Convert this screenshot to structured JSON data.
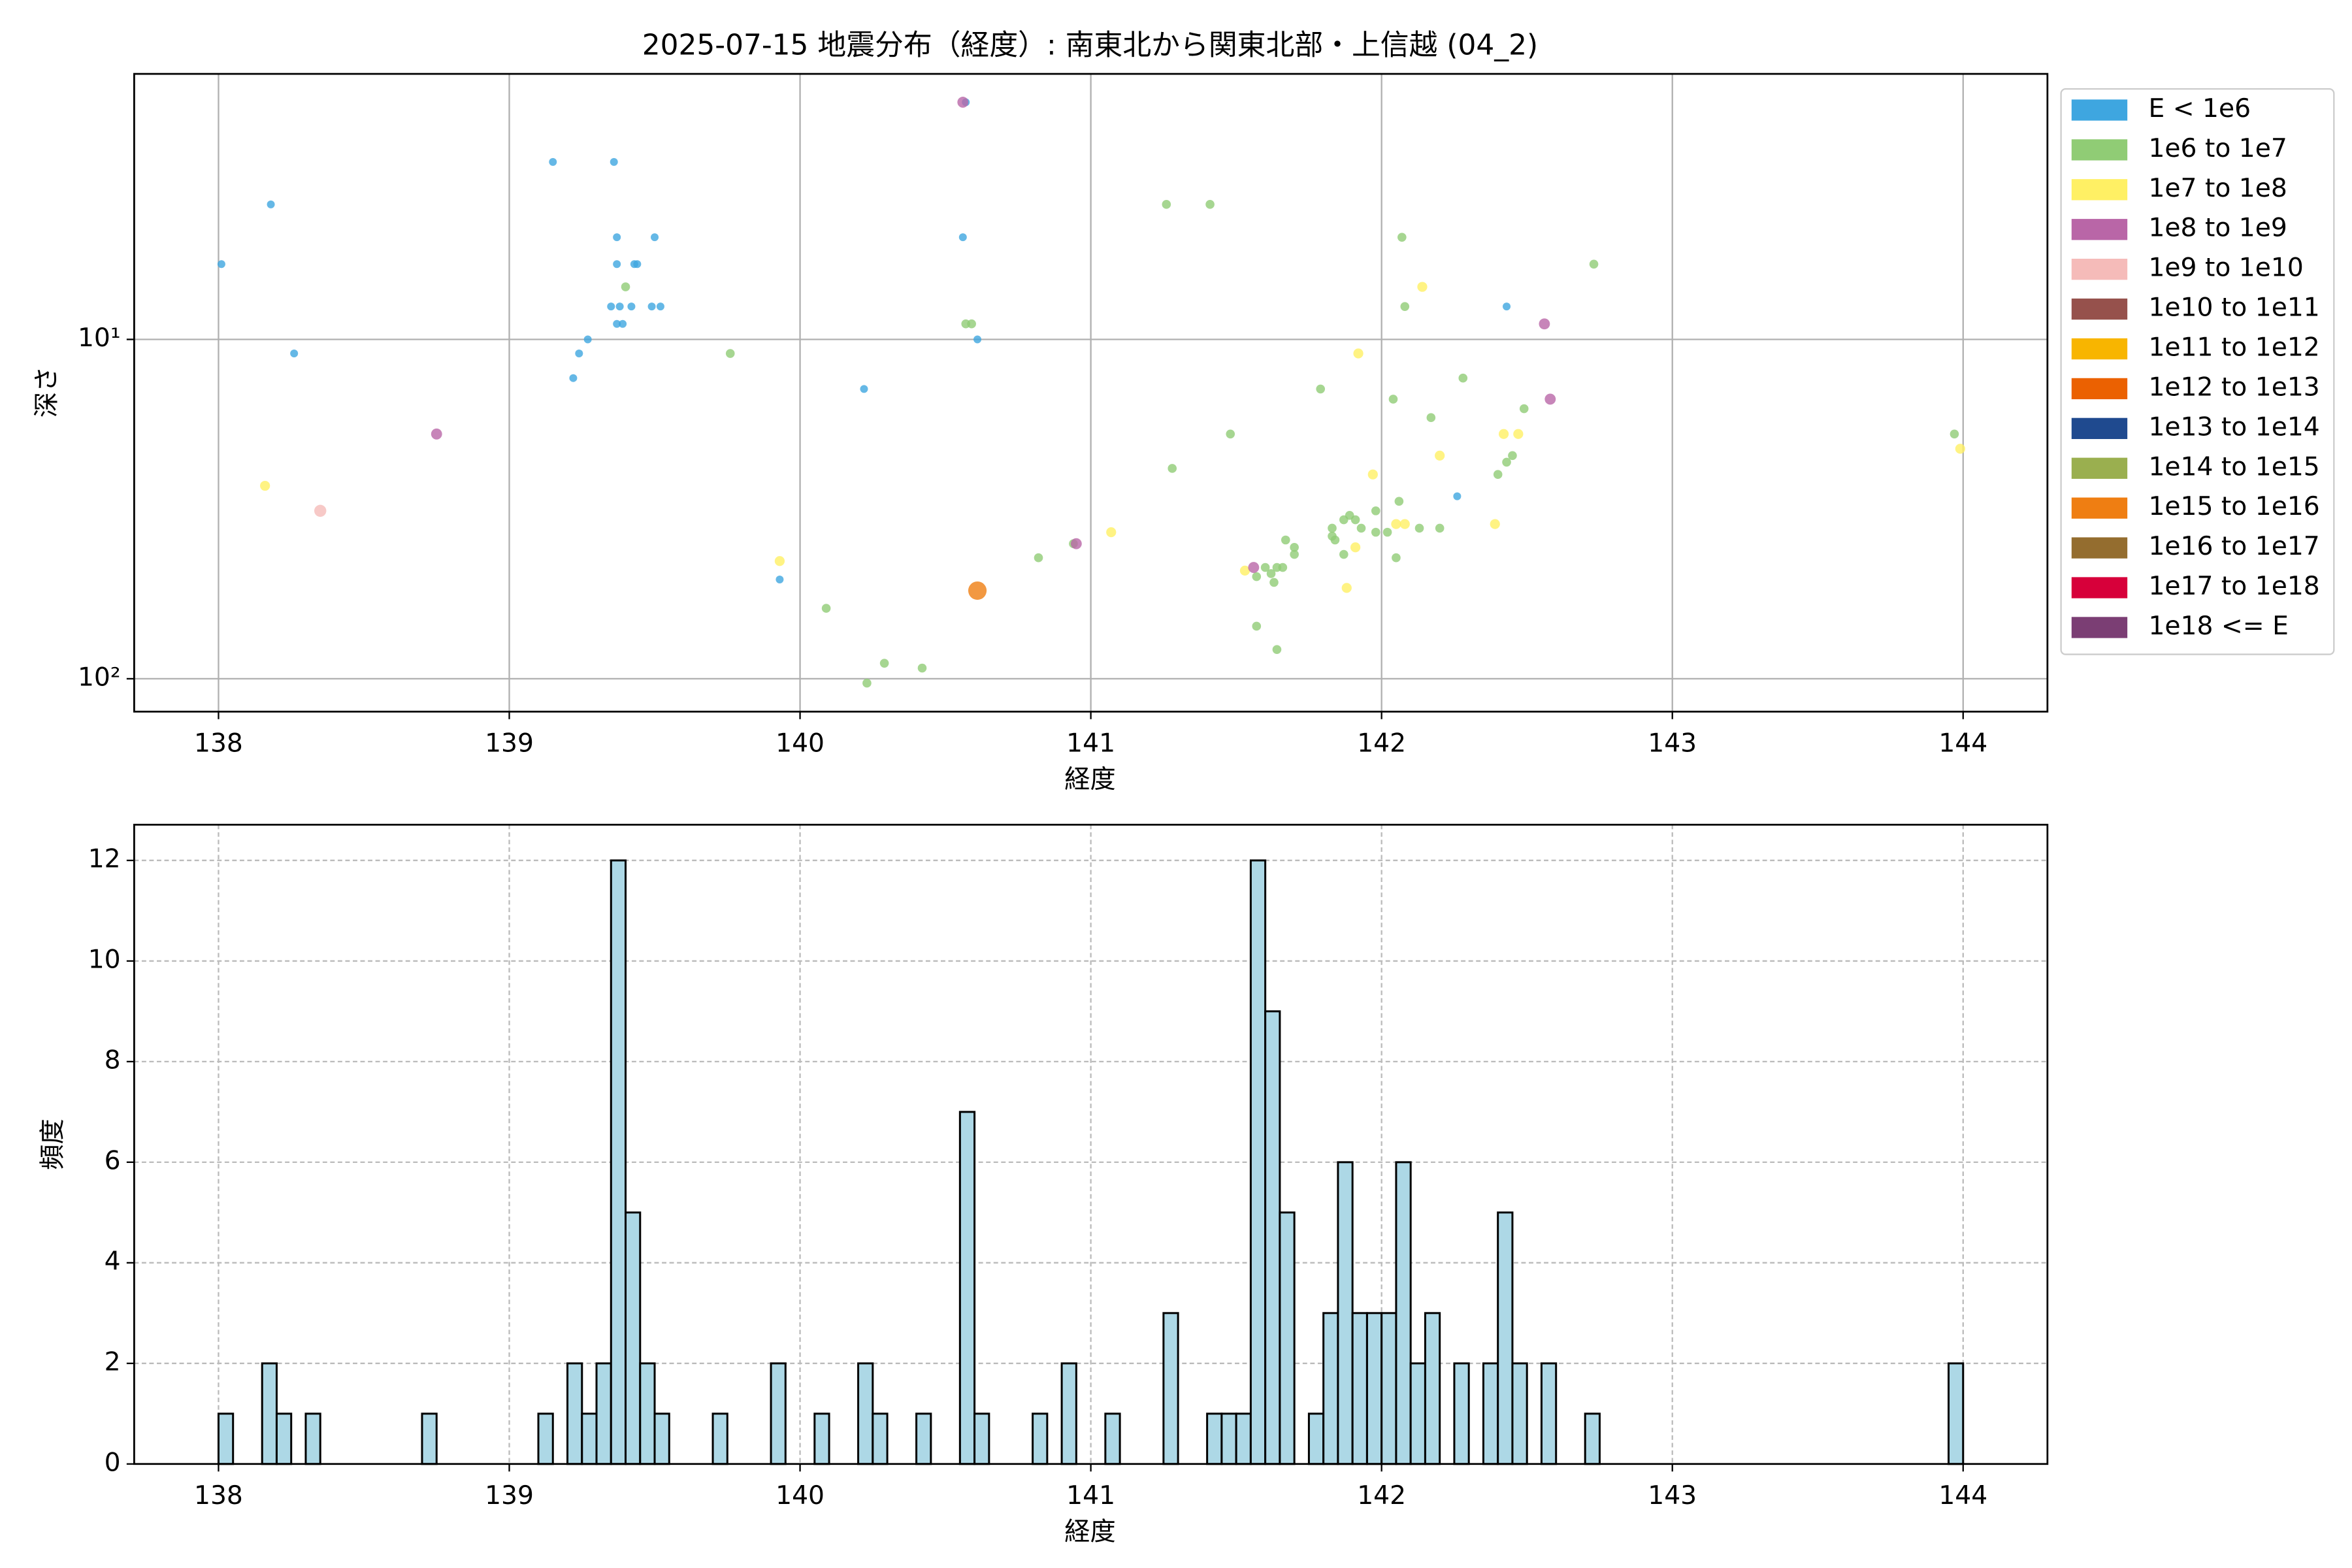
{
  "chart_data": [
    {
      "type": "scatter",
      "title": "2025-07-15 地震分布（経度）: 南東北から関東北部・上信越 (04_2)",
      "x_label": "経度",
      "y_label": "深さ",
      "xlim": [
        137.71,
        144.29
      ],
      "xticks": [
        138,
        139,
        140,
        141,
        142,
        143,
        144
      ],
      "ylim": [
        125,
        1.65
      ],
      "y_scale": "log",
      "yticks": [
        {
          "value": 10,
          "label": "10¹"
        },
        {
          "value": 100,
          "label": "10²"
        }
      ],
      "grid": true,
      "grid_style": "solid",
      "legend": "outside right",
      "series": [
        {
          "name": "E < 1e6",
          "color": "#3ea6e0",
          "x": [
            138.01,
            138.18,
            138.26,
            139.15,
            139.22,
            139.24,
            139.27,
            139.36,
            139.37,
            139.37,
            139.35,
            139.38,
            139.37,
            139.39,
            139.42,
            139.43,
            139.44,
            139.49,
            139.5,
            139.52,
            139.93,
            140.22,
            140.56,
            140.57,
            140.61,
            142.26,
            142.43
          ],
          "values": [
            6,
            4,
            11,
            3,
            13,
            11,
            10,
            3,
            5,
            6,
            8,
            8,
            9,
            9,
            8,
            6,
            6,
            8,
            5,
            8,
            51,
            14,
            5,
            2,
            10,
            29,
            8
          ]
        },
        {
          "name": "1e6 to 1e7",
          "color": "#90cc75",
          "x": [
            139.4,
            139.76,
            140.09,
            140.23,
            140.29,
            140.42,
            140.57,
            140.59,
            140.82,
            140.94,
            141.26,
            141.41,
            141.28,
            141.48,
            141.57,
            141.6,
            141.62,
            141.64,
            141.63,
            141.66,
            141.57,
            141.64,
            141.67,
            141.7,
            141.7,
            141.79,
            141.83,
            141.83,
            141.84,
            141.87,
            141.87,
            141.89,
            141.91,
            141.93,
            141.98,
            141.98,
            142.02,
            142.04,
            142.06,
            142.05,
            142.07,
            142.08,
            142.13,
            142.17,
            142.2,
            142.28,
            142.4,
            142.43,
            142.45,
            142.49,
            142.73,
            143.97
          ],
          "values": [
            7,
            11,
            62,
            103,
            90,
            93,
            9,
            9,
            44,
            40,
            4,
            4,
            24,
            19,
            50,
            47,
            49,
            47,
            52,
            47,
            70,
            82,
            39,
            41,
            43,
            14,
            38,
            36,
            39,
            43,
            34,
            33,
            34,
            36,
            32,
            37,
            37,
            15,
            30,
            44,
            5,
            8,
            36,
            17,
            36,
            13,
            25,
            23,
            22,
            16,
            6,
            19
          ]
        },
        {
          "name": "1e7 to 1e8",
          "color": "#fff064",
          "x": [
            138.16,
            139.93,
            141.07,
            141.53,
            141.88,
            141.91,
            141.92,
            141.97,
            142.05,
            142.08,
            142.14,
            142.2,
            142.39,
            142.42,
            142.47,
            143.99
          ],
          "values": [
            27,
            45,
            37,
            48,
            54,
            41,
            11,
            25,
            35,
            35,
            7,
            22,
            35,
            19,
            19,
            21
          ]
        },
        {
          "name": "1e8 to 1e9",
          "color": "#b966a7",
          "x": [
            138.75,
            140.56,
            140.95,
            141.56,
            142.56,
            142.58
          ],
          "values": [
            19,
            2,
            40,
            47,
            9,
            15
          ]
        },
        {
          "name": "1e9 to 1e10",
          "color": "#f5bbb9",
          "x": [
            138.35
          ],
          "values": [
            32
          ]
        },
        {
          "name": "1e10 to 1e11",
          "color": "#96514c",
          "x": [],
          "values": []
        },
        {
          "name": "1e11 to 1e12",
          "color": "#f8b500",
          "x": [],
          "values": []
        },
        {
          "name": "1e12 to 1e13",
          "color": "#eb6101",
          "x": [],
          "values": []
        },
        {
          "name": "1e13 to 1e14",
          "color": "#1f4a8f",
          "x": [],
          "values": []
        },
        {
          "name": "1e14 to 1e15",
          "color": "#9aaf4f",
          "x": [],
          "values": []
        },
        {
          "name": "1e15 to 1e16",
          "color": "#ef7e12",
          "x": [
            140.61
          ],
          "values": [
            55
          ]
        },
        {
          "name": "1e16 to 1e17",
          "color": "#946d2f",
          "x": [],
          "values": []
        },
        {
          "name": "1e17 to 1e18",
          "color": "#d7003a",
          "x": [],
          "values": []
        },
        {
          "name": "1e18 <= E",
          "color": "#7b3e74",
          "x": [],
          "values": []
        }
      ]
    },
    {
      "type": "histogram",
      "x_label": "経度",
      "y_label": "頻度",
      "xlim": [
        137.71,
        144.29
      ],
      "xticks": [
        138,
        139,
        140,
        141,
        142,
        143,
        144
      ],
      "ylim": [
        0,
        12.71
      ],
      "yticks": [
        0,
        2,
        4,
        6,
        8,
        10,
        12
      ],
      "grid": true,
      "grid_style": "dashed",
      "color": "#add8e6",
      "edgecolor": "#000000",
      "bins": [
        138,
        138.05,
        138.1,
        138.15,
        138.2,
        138.25,
        138.3,
        138.35,
        138.4,
        138.45,
        138.5,
        138.55,
        138.6,
        138.65,
        138.7,
        138.75,
        138.8,
        138.85,
        138.9,
        138.95,
        139,
        139.05,
        139.1,
        139.15,
        139.2,
        139.25,
        139.3,
        139.35,
        139.4,
        139.45,
        139.5,
        139.55,
        139.6,
        139.65,
        139.7,
        139.75,
        139.8,
        139.85,
        139.9,
        139.95,
        140,
        140.05,
        140.1,
        140.15,
        140.2,
        140.25,
        140.3,
        140.35,
        140.4,
        140.45,
        140.5,
        140.55,
        140.6,
        140.65,
        140.7,
        140.75,
        140.8,
        140.85,
        140.9,
        140.95,
        141,
        141.05,
        141.1,
        141.15,
        141.2,
        141.25,
        141.3,
        141.35,
        141.4,
        141.45,
        141.5,
        141.55,
        141.6,
        141.65,
        141.7,
        141.75,
        141.8,
        141.85,
        141.9,
        141.95,
        142,
        142.05,
        142.1,
        142.15,
        142.2,
        142.25,
        142.3,
        142.35,
        142.4,
        142.45,
        142.5,
        142.55,
        142.6,
        142.65,
        142.7,
        142.75,
        142.8,
        142.85,
        142.9,
        142.95,
        143,
        143.05,
        143.1,
        143.15,
        143.2,
        143.25,
        143.3,
        143.35,
        143.4,
        143.45,
        143.5,
        143.55,
        143.6,
        143.65,
        143.7,
        143.75,
        143.8,
        143.85,
        143.9,
        143.95,
        144
      ],
      "values": [
        1,
        0,
        0,
        2,
        1,
        0,
        1,
        0,
        0,
        0,
        0,
        0,
        0,
        0,
        1,
        0,
        0,
        0,
        0,
        0,
        0,
        0,
        1,
        0,
        2,
        1,
        2,
        12,
        5,
        2,
        1,
        0,
        0,
        0,
        1,
        0,
        0,
        0,
        2,
        0,
        0,
        1,
        0,
        0,
        2,
        1,
        0,
        0,
        1,
        0,
        0,
        7,
        1,
        0,
        0,
        0,
        1,
        0,
        2,
        0,
        0,
        1,
        0,
        0,
        0,
        3,
        0,
        0,
        1,
        1,
        1,
        12,
        9,
        5,
        0,
        1,
        3,
        6,
        3,
        3,
        3,
        6,
        2,
        3,
        0,
        2,
        0,
        2,
        5,
        2,
        0,
        2,
        0,
        0,
        1,
        0,
        0,
        0,
        0,
        0,
        0,
        0,
        0,
        0,
        0,
        0,
        0,
        0,
        0,
        0,
        0,
        0,
        0,
        0,
        0,
        0,
        0,
        0,
        0,
        2
      ]
    }
  ]
}
